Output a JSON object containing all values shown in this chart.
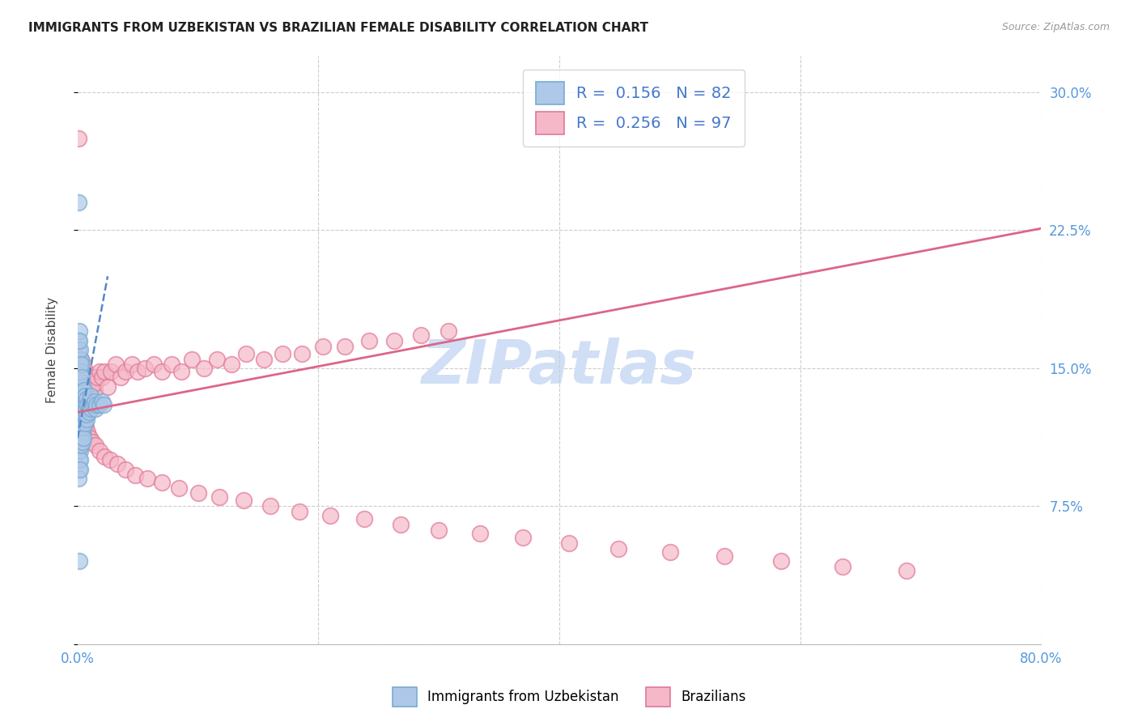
{
  "title": "IMMIGRANTS FROM UZBEKISTAN VS BRAZILIAN FEMALE DISABILITY CORRELATION CHART",
  "source": "Source: ZipAtlas.com",
  "series1_label": "Immigrants from Uzbekistan",
  "series2_label": "Brazilians",
  "series1_color": "#adc8e8",
  "series2_color": "#f5b8c8",
  "series1_edge": "#7aaad0",
  "series2_edge": "#e07898",
  "trend1_color": "#5588cc",
  "trend2_color": "#dd6688",
  "background_color": "#ffffff",
  "watermark": "ZIPatlas",
  "watermark_color": "#d0dff5",
  "title_fontsize": 11,
  "source_fontsize": 9,
  "yticks": [
    0.0,
    0.075,
    0.15,
    0.225,
    0.3
  ],
  "ytick_labels": [
    "",
    "7.5%",
    "15.0%",
    "22.5%",
    "30.0%"
  ],
  "xlim": [
    0.0,
    0.8
  ],
  "ylim": [
    0.0,
    0.32
  ],
  "trend1_x0": 0.0,
  "trend1_y0": 0.112,
  "trend1_x1": 0.025,
  "trend1_y1": 0.2,
  "trend2_x0": 0.0,
  "trend2_y0": 0.126,
  "trend2_x1": 0.8,
  "trend2_y1": 0.226,
  "series1_x": [
    0.001,
    0.001,
    0.001,
    0.001,
    0.001,
    0.001,
    0.001,
    0.001,
    0.001,
    0.001,
    0.001,
    0.001,
    0.001,
    0.001,
    0.001,
    0.001,
    0.001,
    0.001,
    0.001,
    0.001,
    0.002,
    0.002,
    0.002,
    0.002,
    0.002,
    0.002,
    0.002,
    0.002,
    0.002,
    0.002,
    0.002,
    0.002,
    0.002,
    0.002,
    0.002,
    0.003,
    0.003,
    0.003,
    0.003,
    0.003,
    0.003,
    0.003,
    0.003,
    0.003,
    0.003,
    0.004,
    0.004,
    0.004,
    0.004,
    0.004,
    0.004,
    0.004,
    0.004,
    0.005,
    0.005,
    0.005,
    0.005,
    0.005,
    0.005,
    0.006,
    0.006,
    0.006,
    0.006,
    0.007,
    0.007,
    0.007,
    0.008,
    0.008,
    0.009,
    0.01,
    0.01,
    0.011,
    0.012,
    0.013,
    0.014,
    0.015,
    0.016,
    0.018,
    0.02,
    0.022,
    0.001,
    0.002
  ],
  "series1_y": [
    0.125,
    0.13,
    0.118,
    0.135,
    0.112,
    0.14,
    0.108,
    0.145,
    0.15,
    0.105,
    0.155,
    0.1,
    0.16,
    0.095,
    0.165,
    0.128,
    0.122,
    0.115,
    0.17,
    0.09,
    0.13,
    0.125,
    0.135,
    0.12,
    0.14,
    0.115,
    0.145,
    0.11,
    0.15,
    0.105,
    0.155,
    0.16,
    0.1,
    0.165,
    0.095,
    0.128,
    0.132,
    0.122,
    0.118,
    0.138,
    0.142,
    0.112,
    0.148,
    0.108,
    0.152,
    0.13,
    0.125,
    0.12,
    0.135,
    0.115,
    0.14,
    0.11,
    0.145,
    0.128,
    0.122,
    0.132,
    0.118,
    0.138,
    0.112,
    0.13,
    0.125,
    0.135,
    0.12,
    0.128,
    0.133,
    0.122,
    0.13,
    0.125,
    0.128,
    0.132,
    0.126,
    0.135,
    0.128,
    0.13,
    0.132,
    0.128,
    0.13,
    0.13,
    0.132,
    0.13,
    0.24,
    0.045
  ],
  "series2_x": [
    0.001,
    0.001,
    0.002,
    0.002,
    0.002,
    0.003,
    0.003,
    0.003,
    0.003,
    0.004,
    0.004,
    0.004,
    0.005,
    0.005,
    0.005,
    0.006,
    0.006,
    0.007,
    0.007,
    0.008,
    0.008,
    0.009,
    0.01,
    0.01,
    0.011,
    0.012,
    0.013,
    0.014,
    0.015,
    0.016,
    0.018,
    0.02,
    0.022,
    0.025,
    0.028,
    0.032,
    0.036,
    0.04,
    0.045,
    0.05,
    0.056,
    0.063,
    0.07,
    0.078,
    0.086,
    0.095,
    0.105,
    0.116,
    0.128,
    0.14,
    0.155,
    0.17,
    0.186,
    0.204,
    0.222,
    0.242,
    0.263,
    0.285,
    0.308,
    0.002,
    0.003,
    0.004,
    0.005,
    0.006,
    0.007,
    0.008,
    0.01,
    0.012,
    0.015,
    0.018,
    0.022,
    0.027,
    0.033,
    0.04,
    0.048,
    0.058,
    0.07,
    0.084,
    0.1,
    0.118,
    0.138,
    0.16,
    0.184,
    0.21,
    0.238,
    0.268,
    0.3,
    0.334,
    0.37,
    0.408,
    0.449,
    0.492,
    0.537,
    0.584,
    0.635,
    0.688,
    0.001
  ],
  "series2_y": [
    0.145,
    0.13,
    0.14,
    0.125,
    0.15,
    0.135,
    0.145,
    0.128,
    0.155,
    0.132,
    0.148,
    0.122,
    0.14,
    0.135,
    0.152,
    0.13,
    0.145,
    0.138,
    0.148,
    0.135,
    0.142,
    0.138,
    0.14,
    0.145,
    0.138,
    0.142,
    0.145,
    0.138,
    0.142,
    0.145,
    0.148,
    0.145,
    0.148,
    0.14,
    0.148,
    0.152,
    0.145,
    0.148,
    0.152,
    0.148,
    0.15,
    0.152,
    0.148,
    0.152,
    0.148,
    0.155,
    0.15,
    0.155,
    0.152,
    0.158,
    0.155,
    0.158,
    0.158,
    0.162,
    0.162,
    0.165,
    0.165,
    0.168,
    0.17,
    0.13,
    0.128,
    0.125,
    0.122,
    0.12,
    0.118,
    0.115,
    0.112,
    0.11,
    0.108,
    0.105,
    0.102,
    0.1,
    0.098,
    0.095,
    0.092,
    0.09,
    0.088,
    0.085,
    0.082,
    0.08,
    0.078,
    0.075,
    0.072,
    0.07,
    0.068,
    0.065,
    0.062,
    0.06,
    0.058,
    0.055,
    0.052,
    0.05,
    0.048,
    0.045,
    0.042,
    0.04,
    0.275
  ]
}
